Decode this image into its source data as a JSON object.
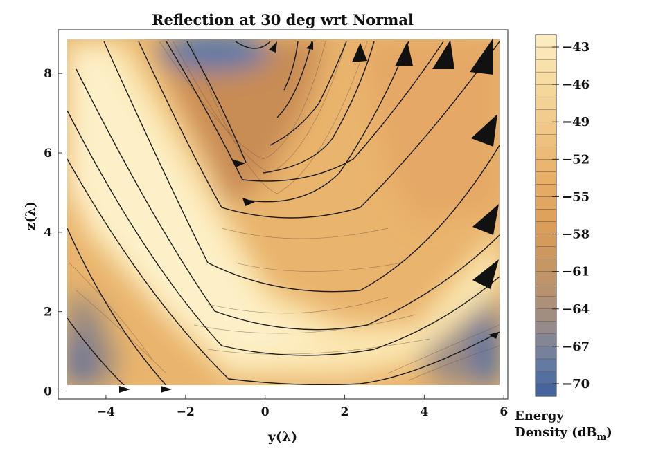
{
  "chart_data": {
    "type": "heatmap",
    "title": "Reflection at 30 deg wrt Normal",
    "xlabel": "y(λ)",
    "ylabel": "z(λ)",
    "xlim": [
      -5.2,
      6.1
    ],
    "ylim": [
      -0.2,
      9.1
    ],
    "x_ticks": [
      -4,
      -2,
      0,
      2,
      4,
      6
    ],
    "y_ticks": [
      0,
      2,
      4,
      6,
      8
    ],
    "colorbar": {
      "title_line1": "Energy",
      "title_line2": "Density (dB",
      "title_sub": "m",
      "title_end": ")",
      "range": [
        -71,
        -42
      ],
      "ticks": [
        -43,
        -46,
        -49,
        -52,
        -55,
        -58,
        -61,
        -64,
        -67,
        -70
      ]
    },
    "colors": {
      "high": "#fbeab8",
      "mid": "#e0a35c",
      "low_brown": "#a88a74",
      "low": "#3a5f9e"
    },
    "streamlines": "energy flow lines incident from upper-left, reflecting near z≈0 and exiting toward upper-right"
  }
}
